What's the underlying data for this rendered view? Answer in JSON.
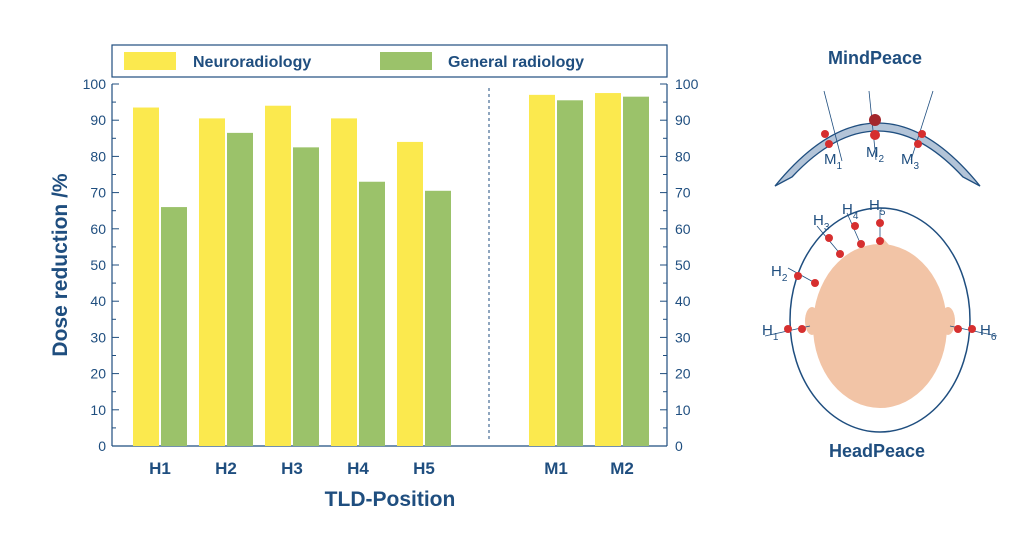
{
  "chart_data": {
    "type": "bar",
    "categories": [
      "H1",
      "H2",
      "H3",
      "H4",
      "H5",
      "M1",
      "M2"
    ],
    "series": [
      {
        "name": "Neuroradiology",
        "color": "#fbe94e",
        "values": [
          93.5,
          90.5,
          94,
          90.5,
          84,
          97,
          97.5
        ]
      },
      {
        "name": "General radiology",
        "color": "#9bc26a",
        "values": [
          66,
          86.5,
          82.5,
          73,
          70.5,
          95.5,
          96.5
        ]
      }
    ],
    "xlabel": "TLD-Position",
    "ylabel": "Dose reduction /%",
    "ylim": [
      0,
      100
    ],
    "yticks": [
      0,
      10,
      20,
      30,
      40,
      50,
      60,
      70,
      80,
      90,
      100
    ],
    "legend_position": "top",
    "group_separator_after": "H5"
  },
  "diagram": {
    "mindpeace": {
      "title": "MindPeace",
      "labels": [
        {
          "base": "M",
          "sub": "1"
        },
        {
          "base": "M",
          "sub": "2"
        },
        {
          "base": "M",
          "sub": "3"
        }
      ]
    },
    "headpeace": {
      "title": "HeadPeace",
      "labels": [
        {
          "base": "H",
          "sub": "1"
        },
        {
          "base": "H",
          "sub": "2"
        },
        {
          "base": "H",
          "sub": "3"
        },
        {
          "base": "H",
          "sub": "4"
        },
        {
          "base": "H",
          "sub": "5"
        },
        {
          "base": "H",
          "sub": "6"
        }
      ]
    },
    "colors": {
      "accent": "#1f4e7f",
      "dot": "#d62f2f",
      "skin": "#f2c4a6",
      "shield": "#b3c4d8"
    }
  }
}
